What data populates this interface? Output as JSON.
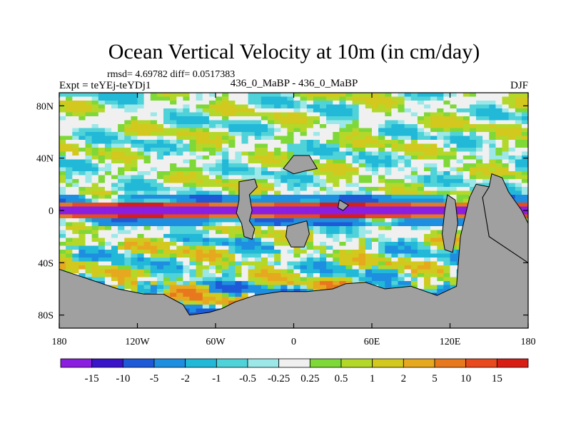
{
  "chart_data": {
    "type": "heatmap",
    "title": "Ocean Vertical Velocity at 10m (in cm/day)",
    "subtitle": "rmsd= 4.69782 diff= 0.0517383",
    "left_label": "Expt = teYEj-teYDj1",
    "center_label": "436_0_MaBP - 436_0_MaBP",
    "right_label": "DJF",
    "xlim": [
      -180,
      180
    ],
    "ylim": [
      -90,
      90
    ],
    "x_ticks": [
      {
        "value": -180,
        "label": "180"
      },
      {
        "value": -120,
        "label": "120W"
      },
      {
        "value": -60,
        "label": "60W"
      },
      {
        "value": 0,
        "label": "0"
      },
      {
        "value": 60,
        "label": "60E"
      },
      {
        "value": 120,
        "label": "120E"
      },
      {
        "value": 180,
        "label": "180"
      }
    ],
    "y_ticks": [
      {
        "value": 80,
        "label": "80N"
      },
      {
        "value": 40,
        "label": "40N"
      },
      {
        "value": 0,
        "label": "0"
      },
      {
        "value": -40,
        "label": "40S"
      },
      {
        "value": -80,
        "label": "80S"
      }
    ],
    "colorbar": {
      "levels": [
        "-15",
        "-10",
        "-5",
        "-2",
        "-1",
        "-0.5",
        "-0.25",
        "0.25",
        "0.5",
        "1",
        "2",
        "5",
        "10",
        "15"
      ],
      "colors": [
        "#8a1fe0",
        "#3a14c8",
        "#1e5ad8",
        "#1e8ee0",
        "#22b8d8",
        "#4fd2d8",
        "#9ce8e8",
        "#f0f0f0",
        "#7ed838",
        "#b4d82a",
        "#d2c81e",
        "#e6a81e",
        "#e8781e",
        "#e84a1e",
        "#d81e14"
      ]
    },
    "land_color": "#a0a0a0"
  }
}
